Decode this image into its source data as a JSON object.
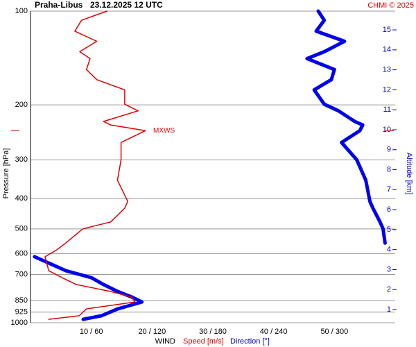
{
  "chart_data": {
    "type": "profile",
    "title": "Praha-Libus",
    "subtitle": "23.12.2025 12 UTC",
    "credit": "CHMI © 2025",
    "ylabel": "Pressure [hPa]",
    "y2label": "Altitude [km]",
    "xlabel": "WIND",
    "ylog": true,
    "grid": true,
    "ylim": [
      1000,
      100
    ],
    "yticks": [
      100,
      200,
      300,
      400,
      500,
      600,
      700,
      850,
      925,
      1000
    ],
    "y2lim": [
      0.34,
      15.94
    ],
    "y2ticks": [
      1,
      2,
      3,
      4,
      5,
      6,
      7,
      8,
      9,
      10,
      11,
      12,
      13,
      14,
      15
    ],
    "xlim": [
      0,
      60
    ],
    "x2lim": [
      0,
      360
    ],
    "xticks": [
      {
        "value": 10,
        "label": "10 / 60"
      },
      {
        "value": 20,
        "label": "20 / 120"
      },
      {
        "value": 30,
        "label": "30 / 180"
      },
      {
        "value": 40,
        "label": "40 / 240"
      },
      {
        "value": 50,
        "label": "50 / 300"
      }
    ],
    "y": [
      100,
      107,
      116,
      125,
      135,
      142,
      154,
      166,
      179,
      199,
      209,
      226,
      232,
      242,
      264,
      300,
      349,
      408,
      429,
      475,
      500,
      555,
      584,
      614,
      681,
      717,
      754,
      794,
      827,
      858,
      903,
      950,
      975
    ],
    "series": [
      {
        "name": "Speed [m/s]",
        "color": "#e00000",
        "axis": "x",
        "values": [
          12.6,
          8.4,
          7.3,
          10.9,
          8.1,
          9.8,
          9.2,
          10.9,
          15.5,
          15.5,
          17.7,
          12.0,
          13.2,
          18.9,
          14.9,
          14.9,
          14.3,
          16.0,
          15.5,
          13.2,
          8.6,
          5.8,
          4.3,
          2.4,
          3.0,
          5.2,
          7.5,
          13.2,
          16.6,
          17.2,
          9.2,
          8.0,
          3.0
        ]
      },
      {
        "name": "Direction [°]",
        "color": "#0000ee",
        "axis": "x2",
        "values": [
          284,
          290,
          282,
          310,
          290,
          273,
          300,
          297,
          280,
          290,
          304,
          320,
          328,
          325,
          307,
          322,
          331,
          335,
          338,
          345,
          348,
          350,
          null,
          4,
          35,
          60,
          72,
          86,
          100,
          110,
          86,
          70,
          52
        ]
      }
    ],
    "max_wind": {
      "label": "MXWS",
      "pressure": 242,
      "color": "#e00000"
    }
  }
}
